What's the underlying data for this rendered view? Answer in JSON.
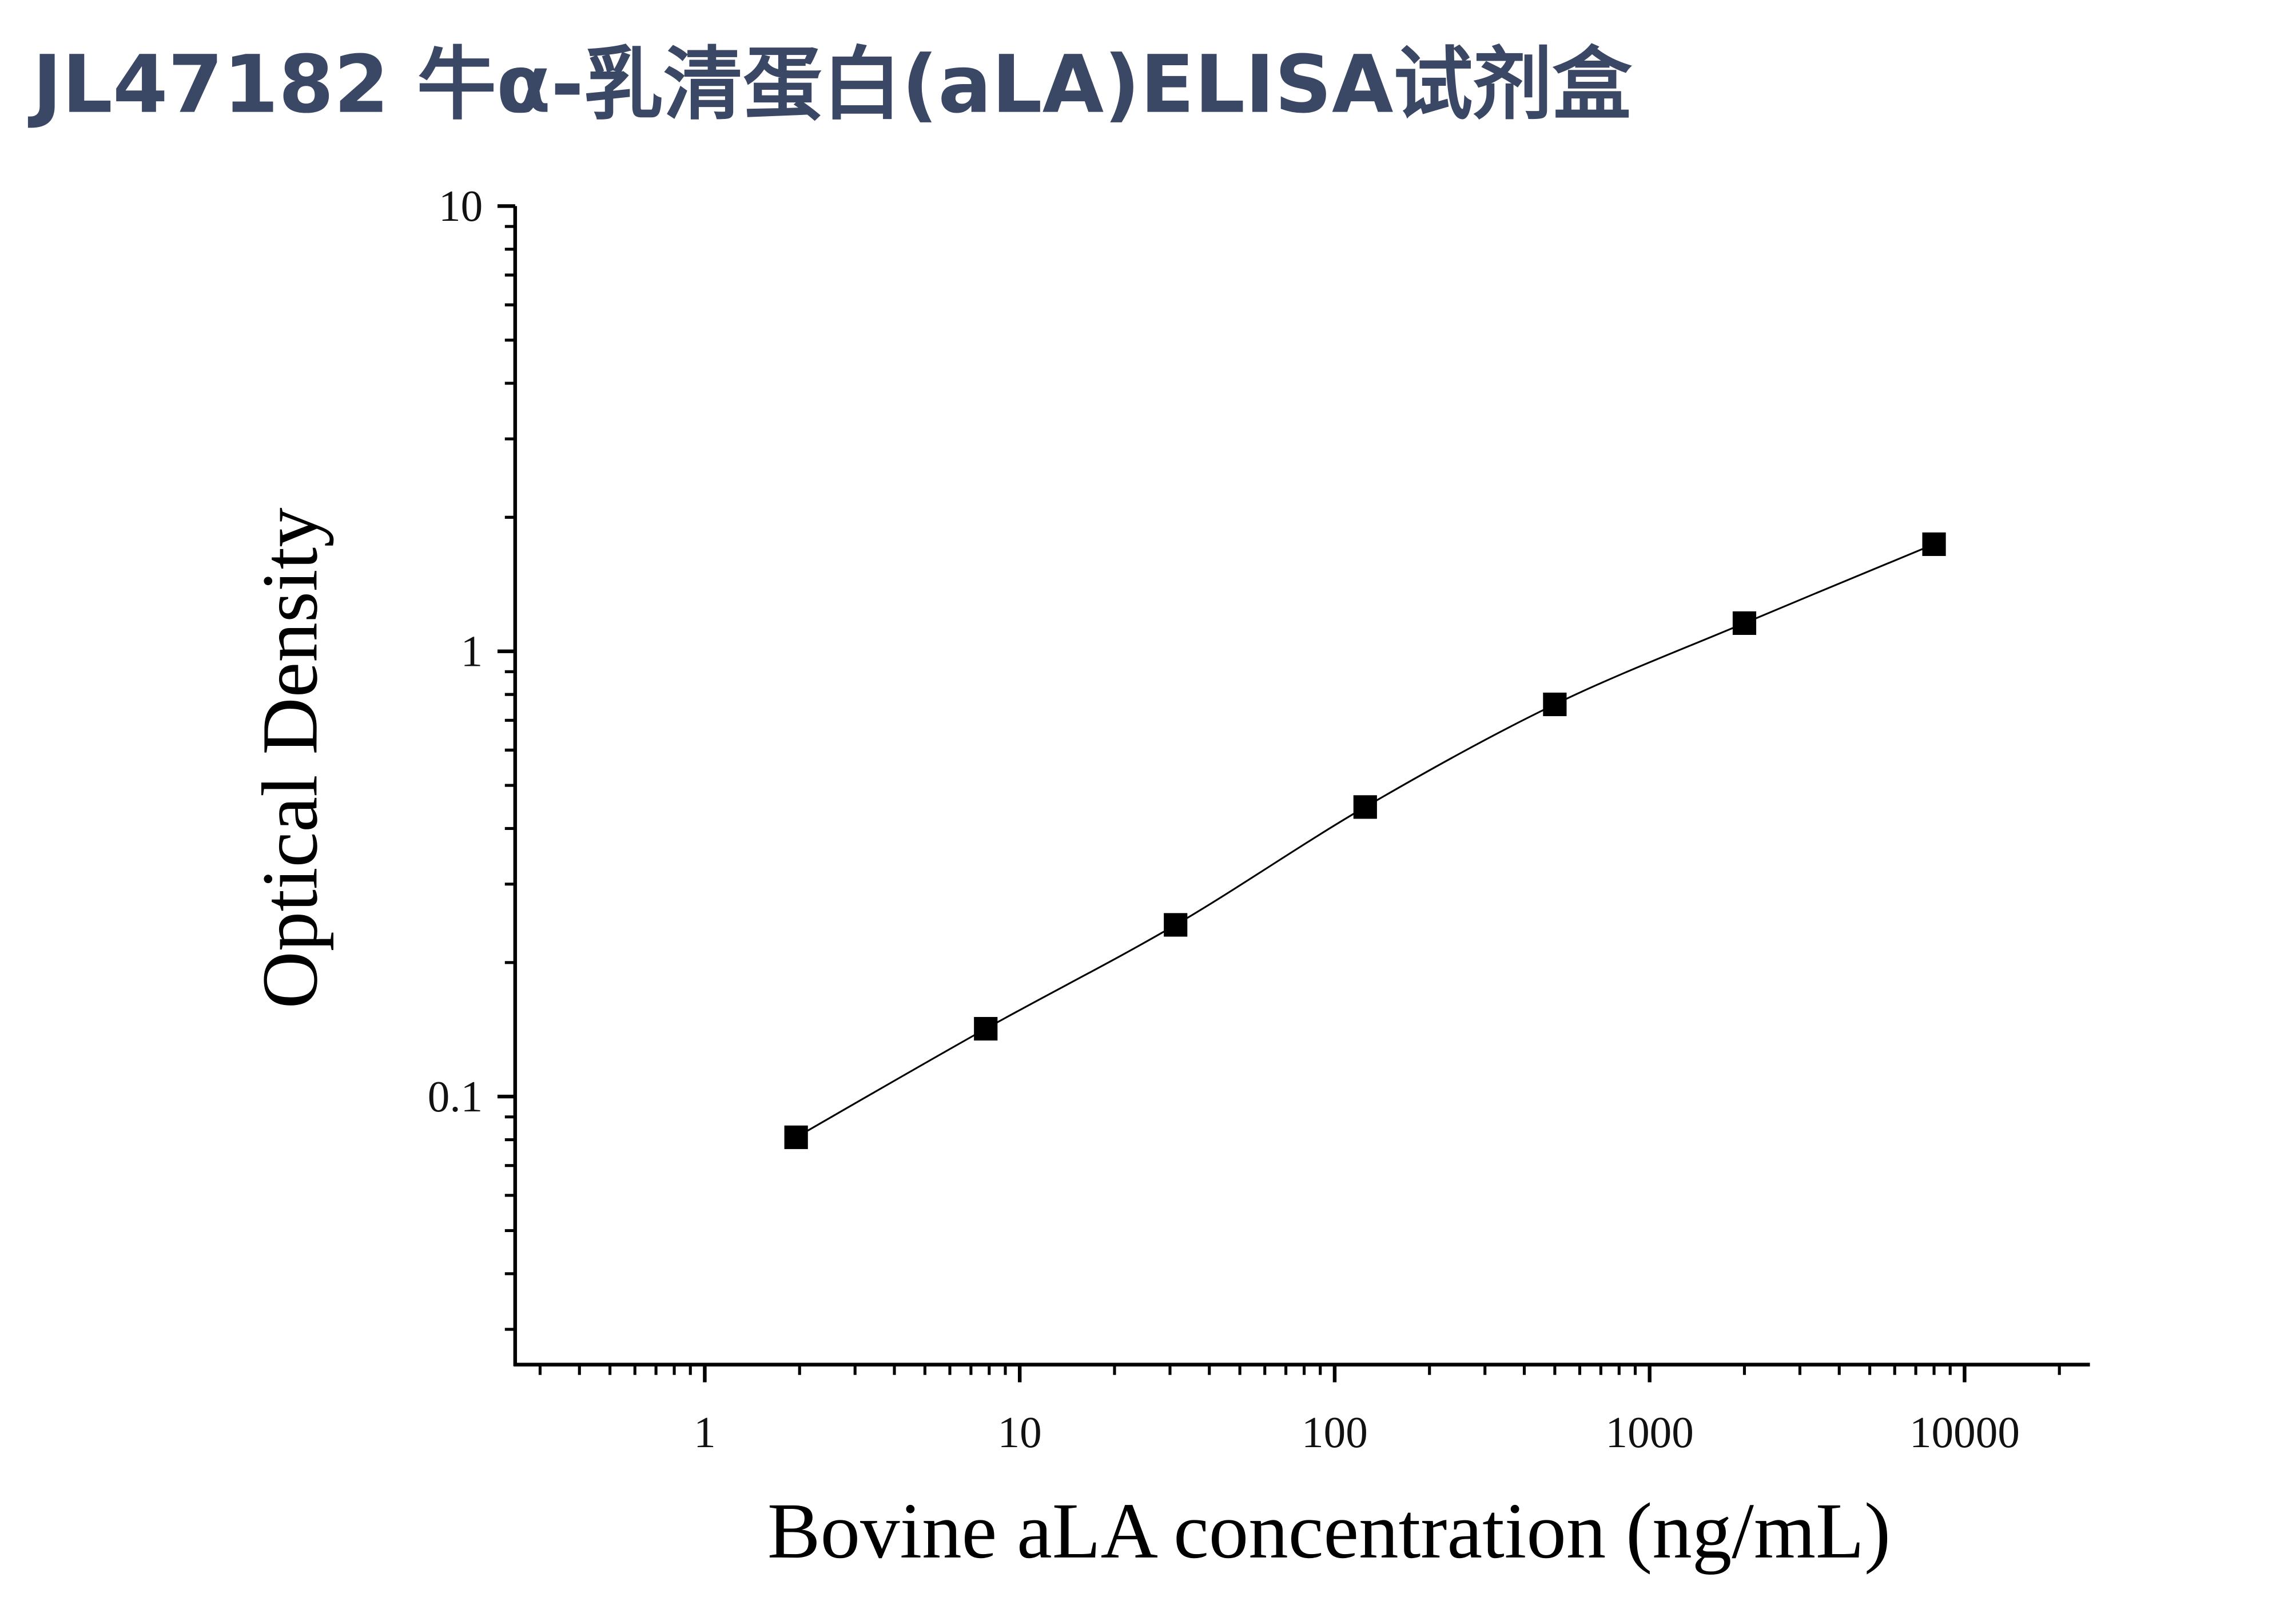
{
  "chart_data": {
    "type": "scatter",
    "title": "JL47182 牛α-乳清蛋白(aLA)ELISA试剂盒",
    "x_label": "Bovine aLA concentration (ng/mL)",
    "y_label": "Optical Density",
    "x": [
      1.95,
      7.8,
      31.25,
      125,
      500,
      2000,
      8000
    ],
    "series": [
      {
        "color": "#000000",
        "values": [
          0.081,
          0.142,
          0.243,
          0.447,
          0.76,
          1.157,
          1.74
        ]
      }
    ],
    "xscale": "log",
    "yscale": "log",
    "xlim": [
      0.25,
      25000
    ],
    "ylim": [
      0.025,
      10
    ],
    "xticks": [
      1,
      10,
      100,
      1000,
      10000
    ],
    "yticks": [
      0.1,
      1,
      10
    ],
    "xminorticks": [
      0.3,
      0.4,
      0.5,
      0.6,
      0.7,
      0.8,
      0.9,
      2,
      3,
      4,
      5,
      6,
      7,
      8,
      9,
      20,
      30,
      40,
      50,
      60,
      70,
      80,
      90,
      200,
      300,
      400,
      500,
      600,
      700,
      800,
      900,
      2000,
      3000,
      4000,
      5000,
      6000,
      7000,
      8000,
      9000,
      20000
    ],
    "yminorticks": [
      0.03,
      0.04,
      0.05,
      0.06,
      0.07,
      0.08,
      0.09,
      0.2,
      0.3,
      0.4,
      0.5,
      0.6,
      0.7,
      0.8,
      0.9,
      2,
      3,
      4,
      5,
      6,
      7,
      8,
      9
    ]
  }
}
